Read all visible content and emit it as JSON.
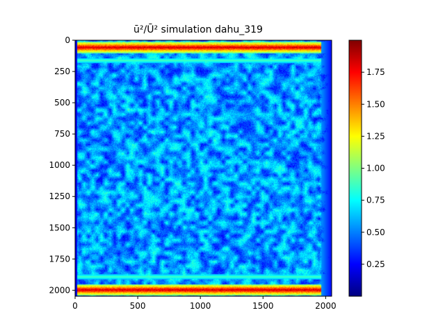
{
  "chart_data": {
    "type": "heatmap",
    "title_main": "ū²/Ū²",
    "title_rest": " simulation dahu_319",
    "xlim": [
      0,
      2048
    ],
    "ylim": [
      2048,
      0
    ],
    "xticks": [
      0,
      500,
      1000,
      1500,
      2000
    ],
    "yticks": [
      0,
      250,
      500,
      750,
      1000,
      1250,
      1500,
      1750,
      2000
    ],
    "colorbar": {
      "colormap": "jet",
      "range": [
        0.0,
        2.0
      ],
      "ticks": [
        0.25,
        0.5,
        0.75,
        1.0,
        1.25,
        1.5,
        1.75
      ],
      "tick_labels": [
        "0.25",
        "0.50",
        "0.75",
        "1.00",
        "1.25",
        "1.50",
        "1.75"
      ]
    },
    "field_description": {
      "interior_mean": 0.55,
      "top_band": {
        "y_center": 55,
        "value": 1.85
      },
      "bottom_band": {
        "y_center": 1995,
        "value": 1.85
      },
      "secondary_band_top": {
        "y_center": 160,
        "value": 0.9
      },
      "secondary_band_bottom": {
        "y_center": 1890,
        "value": 0.9
      },
      "right_edge_value": 0.25
    }
  }
}
